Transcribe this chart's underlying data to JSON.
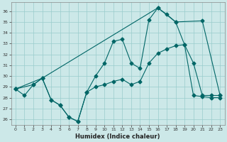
{
  "xlabel": "Humidex (Indice chaleur)",
  "bg_color": "#cce8e8",
  "line_color": "#006666",
  "grid_color": "#99cccc",
  "xlim": [
    -0.5,
    23.5
  ],
  "ylim": [
    25.5,
    36.8
  ],
  "yticks": [
    26,
    27,
    28,
    29,
    30,
    31,
    32,
    33,
    34,
    35,
    36
  ],
  "xticks": [
    0,
    1,
    2,
    3,
    4,
    5,
    6,
    7,
    8,
    9,
    10,
    11,
    12,
    13,
    14,
    15,
    16,
    17,
    18,
    19,
    20,
    21,
    22,
    23
  ],
  "series1_x": [
    0,
    1,
    2,
    3,
    4,
    5,
    6,
    7,
    8,
    9,
    10,
    11,
    12,
    13,
    14,
    15,
    16,
    17,
    18,
    19,
    20,
    21,
    22,
    23
  ],
  "series1_y": [
    28.8,
    28.2,
    29.2,
    29.8,
    27.8,
    27.3,
    26.2,
    25.8,
    28.5,
    29.0,
    29.2,
    29.5,
    29.7,
    29.2,
    29.5,
    31.2,
    32.1,
    32.5,
    32.8,
    32.9,
    28.2,
    28.1,
    28.0,
    28.0
  ],
  "series2_x": [
    0,
    2,
    3,
    4,
    5,
    6,
    7,
    8,
    9,
    10,
    11,
    12,
    13,
    14,
    15,
    16,
    17,
    18,
    19,
    20,
    21,
    22,
    23
  ],
  "series2_y": [
    28.8,
    29.2,
    29.8,
    27.8,
    27.3,
    26.2,
    25.8,
    28.5,
    30.0,
    31.2,
    33.2,
    33.4,
    31.2,
    30.7,
    35.2,
    36.3,
    35.7,
    35.0,
    32.9,
    31.2,
    28.2,
    28.2,
    28.2
  ],
  "series3_x": [
    0,
    3,
    16,
    18,
    21,
    23
  ],
  "series3_y": [
    28.8,
    29.8,
    36.3,
    35.0,
    35.1,
    28.2
  ]
}
